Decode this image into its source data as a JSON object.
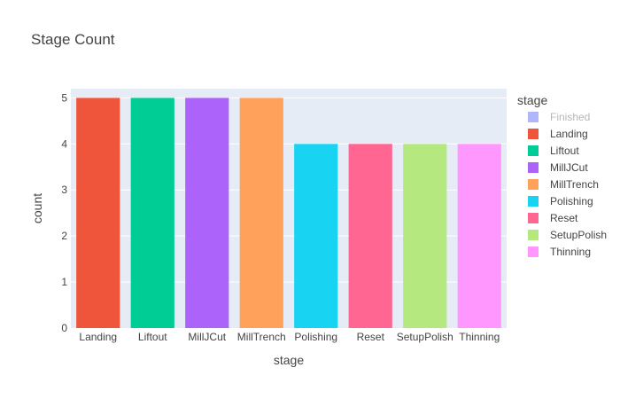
{
  "chart_data": {
    "type": "bar",
    "title": "Stage Count",
    "xlabel": "stage",
    "ylabel": "count",
    "categories": [
      "Landing",
      "Liftout",
      "MillJCut",
      "MillTrench",
      "Polishing",
      "Reset",
      "SetupPolish",
      "Thinning"
    ],
    "values": [
      5,
      5,
      5,
      5,
      4,
      4,
      4,
      4
    ],
    "colors": [
      "#EF553B",
      "#00CC96",
      "#AB63FA",
      "#FFA15A",
      "#19D3F3",
      "#FF6692",
      "#B6E880",
      "#FF97FF"
    ],
    "ylim": [
      0,
      5.2
    ],
    "yticks": [
      0,
      1,
      2,
      3,
      4,
      5
    ],
    "grid": true,
    "legend": {
      "title": "stage",
      "placement": "right",
      "items": [
        {
          "name": "Finished",
          "color": "#636EFA",
          "hidden": true
        },
        {
          "name": "Landing",
          "color": "#EF553B"
        },
        {
          "name": "Liftout",
          "color": "#00CC96"
        },
        {
          "name": "MillJCut",
          "color": "#AB63FA"
        },
        {
          "name": "MillTrench",
          "color": "#FFA15A"
        },
        {
          "name": "Polishing",
          "color": "#19D3F3"
        },
        {
          "name": "Reset",
          "color": "#FF6692"
        },
        {
          "name": "SetupPolish",
          "color": "#B6E880"
        },
        {
          "name": "Thinning",
          "color": "#FF97FF"
        }
      ]
    }
  }
}
